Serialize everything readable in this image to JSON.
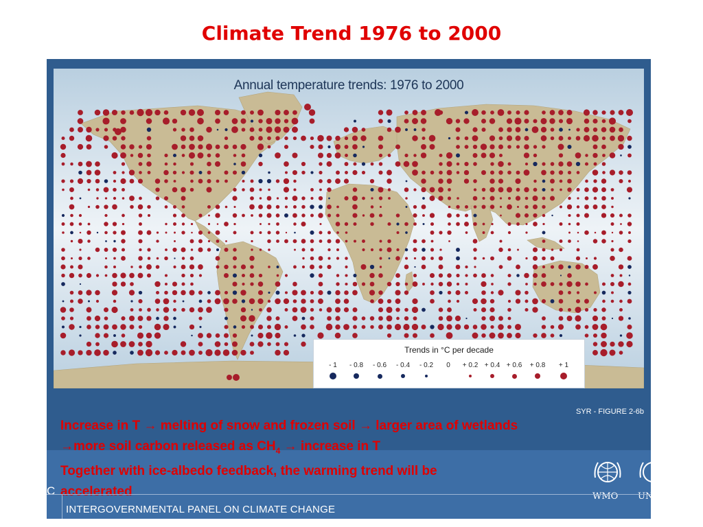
{
  "slide_title": "Climate Trend 1976 to 2000",
  "map": {
    "title": "Annual temperature trends:  1976 to 2000",
    "warming_color": "#a71d2a",
    "cooling_color": "#16295e",
    "land_color": "#c9bb95",
    "ocean_color": "#dfe9f1"
  },
  "legend": {
    "title": "Trends in °C per decade",
    "values": [
      "- 1",
      "- 0.8",
      "- 0.6",
      "- 0.4",
      "- 0.2",
      "0",
      "+ 0.2",
      "+ 0.4",
      "+ 0.6",
      "+ 0.8",
      "+ 1"
    ]
  },
  "figure_caption": "SYR - FIGURE 2-6b",
  "annotation": {
    "line1": "Increase in T → melting of snow and frozen soil → larger area of wetlands",
    "line2_pre": "→more soil carbon released as CH",
    "line2_sub": "4",
    "line2_post": " → increase in T",
    "line3": "Together with ice-albedo feedback, the warming trend will be",
    "line4": "accelerated"
  },
  "logos": {
    "wmo": "WMO",
    "unep": "UNI"
  },
  "footer_left": "C",
  "footer": "INTERGOVERNMENTAL PANEL ON CLIMATE CHANGE"
}
